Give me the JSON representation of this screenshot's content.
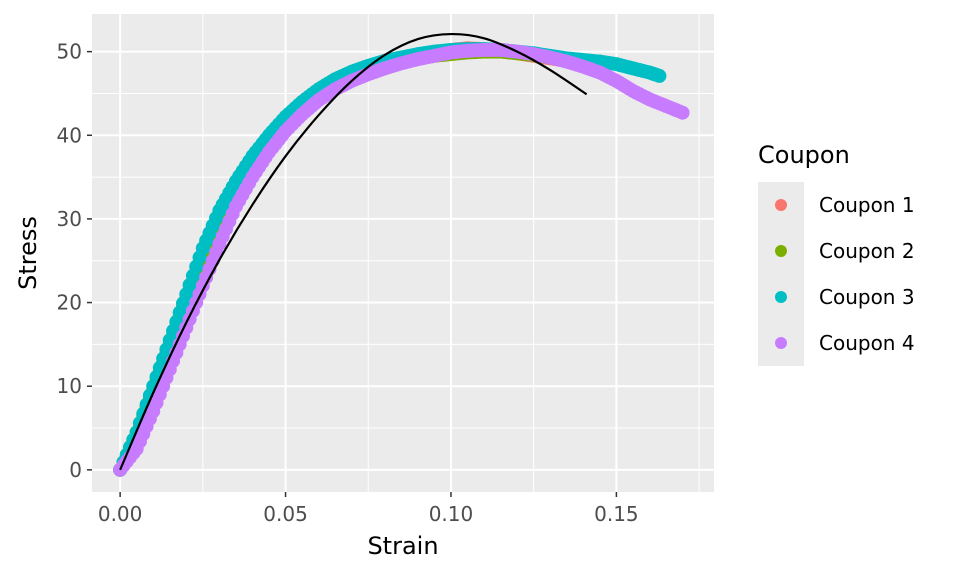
{
  "chart_data": {
    "type": "scatter",
    "xlabel": "Strain",
    "ylabel": "Stress",
    "xlim": [
      -0.0085,
      0.1795
    ],
    "ylim": [
      -2.65,
      54.5
    ],
    "x_ticks": [
      0.0,
      0.05,
      0.1,
      0.15
    ],
    "x_tick_labels": [
      "0.00",
      "0.05",
      "0.10",
      "0.15"
    ],
    "y_ticks": [
      0,
      10,
      20,
      30,
      40,
      50
    ],
    "y_tick_labels": [
      "0",
      "10",
      "20",
      "30",
      "40",
      "50"
    ],
    "grid": true,
    "legend": {
      "title": "Coupon",
      "placement": "right"
    },
    "series": [
      {
        "name": "Coupon 1",
        "color": "#F8766D",
        "points": [
          [
            0.0,
            0.0
          ],
          [
            0.005,
            3.0
          ],
          [
            0.01,
            8.0
          ],
          [
            0.015,
            13.0
          ],
          [
            0.02,
            18.5
          ],
          [
            0.025,
            23.5
          ],
          [
            0.03,
            28.5
          ],
          [
            0.035,
            32.5
          ],
          [
            0.04,
            36.0
          ],
          [
            0.045,
            39.0
          ],
          [
            0.05,
            41.5
          ],
          [
            0.055,
            43.5
          ],
          [
            0.06,
            45.0
          ],
          [
            0.065,
            46.0
          ],
          [
            0.07,
            47.0
          ],
          [
            0.075,
            47.8
          ],
          [
            0.08,
            48.5
          ],
          [
            0.085,
            49.0
          ],
          [
            0.09,
            49.5
          ],
          [
            0.095,
            49.9
          ],
          [
            0.1,
            50.2
          ],
          [
            0.105,
            50.4
          ],
          [
            0.11,
            50.3
          ],
          [
            0.115,
            50.1
          ],
          [
            0.12,
            49.8
          ],
          [
            0.125,
            49.5
          ],
          [
            0.13,
            49.2
          ],
          [
            0.135,
            48.9
          ],
          [
            0.14,
            48.6
          ]
        ]
      },
      {
        "name": "Coupon 2",
        "color": "#7CAE00",
        "points": [
          [
            0.0,
            0.0
          ],
          [
            0.005,
            4.5
          ],
          [
            0.01,
            9.5
          ],
          [
            0.015,
            15.0
          ],
          [
            0.02,
            20.5
          ],
          [
            0.025,
            25.5
          ],
          [
            0.03,
            29.5
          ],
          [
            0.035,
            33.0
          ],
          [
            0.04,
            36.5
          ],
          [
            0.045,
            39.5
          ],
          [
            0.05,
            41.8
          ],
          [
            0.055,
            43.8
          ],
          [
            0.06,
            45.3
          ],
          [
            0.065,
            46.5
          ],
          [
            0.07,
            47.3
          ],
          [
            0.075,
            48.0
          ],
          [
            0.08,
            48.5
          ],
          [
            0.085,
            48.9
          ],
          [
            0.09,
            49.2
          ],
          [
            0.095,
            49.5
          ],
          [
            0.1,
            49.7
          ],
          [
            0.105,
            49.9
          ],
          [
            0.11,
            50.0
          ],
          [
            0.115,
            50.0
          ],
          [
            0.12,
            49.8
          ],
          [
            0.125,
            49.6
          ],
          [
            0.13,
            49.3
          ],
          [
            0.135,
            49.1
          ],
          [
            0.14,
            48.9
          ],
          [
            0.145,
            48.8
          ]
        ]
      },
      {
        "name": "Coupon 3",
        "color": "#00BFC4",
        "points": [
          [
            0.0,
            0.0
          ],
          [
            0.005,
            4.5
          ],
          [
            0.01,
            10.0
          ],
          [
            0.015,
            15.5
          ],
          [
            0.02,
            21.0
          ],
          [
            0.025,
            26.5
          ],
          [
            0.03,
            31.0
          ],
          [
            0.035,
            34.5
          ],
          [
            0.04,
            37.5
          ],
          [
            0.045,
            40.0
          ],
          [
            0.05,
            42.2
          ],
          [
            0.055,
            44.0
          ],
          [
            0.06,
            45.5
          ],
          [
            0.065,
            46.7
          ],
          [
            0.07,
            47.6
          ],
          [
            0.075,
            48.3
          ],
          [
            0.08,
            48.9
          ],
          [
            0.085,
            49.3
          ],
          [
            0.09,
            49.7
          ],
          [
            0.095,
            50.0
          ],
          [
            0.1,
            50.2
          ],
          [
            0.105,
            50.3
          ],
          [
            0.11,
            50.3
          ],
          [
            0.115,
            50.2
          ],
          [
            0.12,
            50.0
          ],
          [
            0.125,
            49.8
          ],
          [
            0.13,
            49.5
          ],
          [
            0.135,
            49.2
          ],
          [
            0.14,
            49.0
          ],
          [
            0.145,
            48.8
          ],
          [
            0.15,
            48.5
          ],
          [
            0.155,
            48.0
          ],
          [
            0.16,
            47.5
          ],
          [
            0.163,
            47.1
          ]
        ]
      },
      {
        "name": "Coupon 4",
        "color": "#C77CFF",
        "points": [
          [
            0.0,
            0.0
          ],
          [
            0.005,
            2.5
          ],
          [
            0.01,
            7.0
          ],
          [
            0.015,
            12.0
          ],
          [
            0.02,
            17.0
          ],
          [
            0.025,
            22.0
          ],
          [
            0.03,
            27.0
          ],
          [
            0.035,
            31.5
          ],
          [
            0.04,
            35.0
          ],
          [
            0.045,
            38.0
          ],
          [
            0.05,
            40.5
          ],
          [
            0.055,
            42.5
          ],
          [
            0.06,
            44.2
          ],
          [
            0.065,
            45.5
          ],
          [
            0.07,
            46.5
          ],
          [
            0.075,
            47.3
          ],
          [
            0.08,
            48.0
          ],
          [
            0.085,
            48.6
          ],
          [
            0.09,
            49.1
          ],
          [
            0.095,
            49.5
          ],
          [
            0.1,
            49.9
          ],
          [
            0.105,
            50.1
          ],
          [
            0.11,
            50.2
          ],
          [
            0.115,
            50.2
          ],
          [
            0.12,
            50.0
          ],
          [
            0.125,
            49.7
          ],
          [
            0.13,
            49.3
          ],
          [
            0.135,
            48.8
          ],
          [
            0.14,
            48.2
          ],
          [
            0.145,
            47.5
          ],
          [
            0.15,
            46.5
          ],
          [
            0.155,
            45.3
          ],
          [
            0.16,
            44.3
          ],
          [
            0.165,
            43.5
          ],
          [
            0.17,
            42.7
          ]
        ]
      }
    ],
    "fit_line": {
      "color": "#000000",
      "points": [
        [
          0.0,
          0.0
        ],
        [
          0.01,
          9.2
        ],
        [
          0.02,
          17.6
        ],
        [
          0.03,
          25.1
        ],
        [
          0.04,
          31.7
        ],
        [
          0.05,
          37.5
        ],
        [
          0.06,
          42.4
        ],
        [
          0.07,
          46.5
        ],
        [
          0.08,
          49.6
        ],
        [
          0.09,
          51.5
        ],
        [
          0.1,
          52.1
        ],
        [
          0.11,
          51.6
        ],
        [
          0.12,
          50.0
        ],
        [
          0.13,
          47.8
        ],
        [
          0.141,
          44.9
        ]
      ]
    }
  }
}
